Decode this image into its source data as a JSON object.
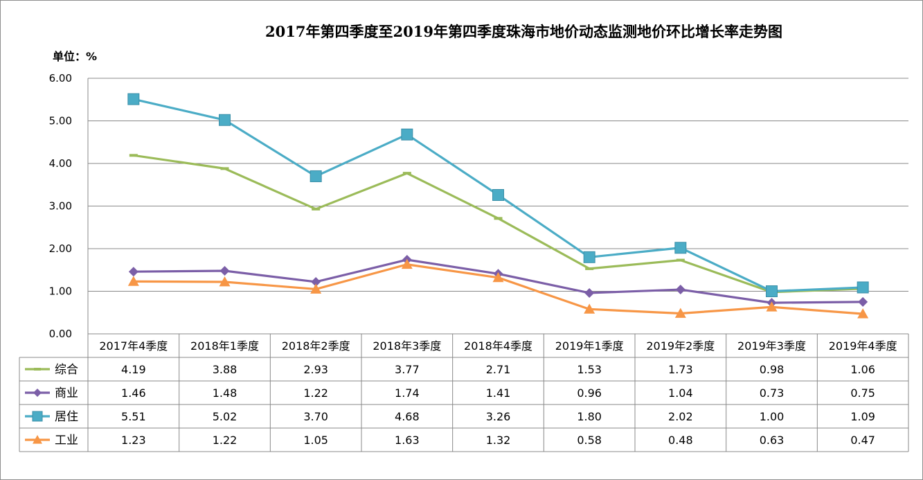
{
  "chart_data": {
    "type": "line",
    "title": "2017年第四季度至2019年第四季度珠海市地价动态监测地价环比增长率走势图",
    "unit_label": "单位：%",
    "categories": [
      "2017年4季度",
      "2018年1季度",
      "2018年2季度",
      "2018年3季度",
      "2018年4季度",
      "2019年1季度",
      "2019年2季度",
      "2019年3季度",
      "2019年4季度"
    ],
    "yticks": [
      "0.00",
      "1.00",
      "2.00",
      "3.00",
      "4.00",
      "5.00",
      "6.00"
    ],
    "ylim": [
      0,
      6
    ],
    "grid": true,
    "legend": "data-table-left",
    "series": [
      {
        "name": "综合",
        "marker": "dash",
        "color": "#9bbb59",
        "values": [
          4.19,
          3.88,
          2.93,
          3.77,
          2.71,
          1.53,
          1.73,
          0.98,
          1.06
        ],
        "labels": [
          "4.19",
          "3.88",
          "2.93",
          "3.77",
          "2.71",
          "1.53",
          "1.73",
          "0.98",
          "1.06"
        ]
      },
      {
        "name": "商业",
        "marker": "diamond",
        "color": "#7b5ea7",
        "values": [
          1.46,
          1.48,
          1.22,
          1.74,
          1.41,
          0.96,
          1.04,
          0.73,
          0.75
        ],
        "labels": [
          "1.46",
          "1.48",
          "1.22",
          "1.74",
          "1.41",
          "0.96",
          "1.04",
          "0.73",
          "0.75"
        ]
      },
      {
        "name": "居住",
        "marker": "square",
        "color": "#4bacc6",
        "values": [
          5.51,
          5.02,
          3.7,
          4.68,
          3.26,
          1.8,
          2.02,
          1.0,
          1.09
        ],
        "labels": [
          "5.51",
          "5.02",
          "3.70",
          "4.68",
          "3.26",
          "1.80",
          "2.02",
          "1.00",
          "1.09"
        ]
      },
      {
        "name": "工业",
        "marker": "triangle",
        "color": "#f79646",
        "values": [
          1.23,
          1.22,
          1.05,
          1.63,
          1.32,
          0.58,
          0.48,
          0.63,
          0.47
        ],
        "labels": [
          "1.23",
          "1.22",
          "1.05",
          "1.63",
          "1.32",
          "0.58",
          "0.48",
          "0.63",
          "0.47"
        ]
      }
    ]
  }
}
